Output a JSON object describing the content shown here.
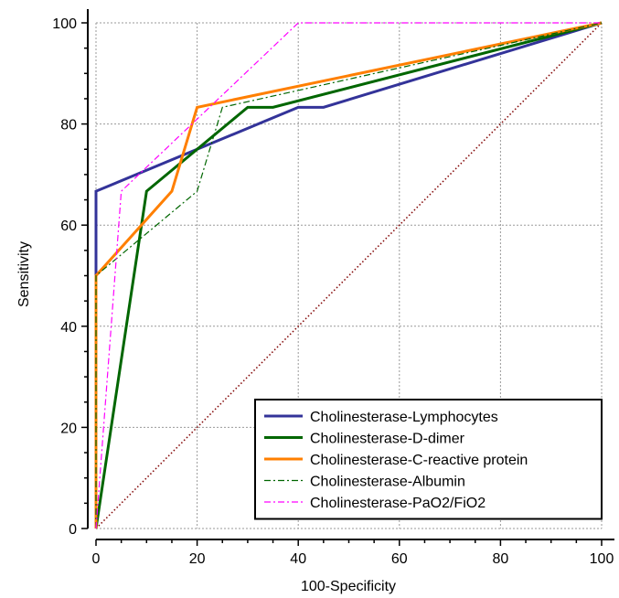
{
  "chart_data": {
    "type": "line",
    "title": "",
    "xlabel": "100-Specificity",
    "ylabel": "Sensitivity",
    "xlim": [
      0,
      100
    ],
    "ylim": [
      0,
      100
    ],
    "x_ticks": [
      0,
      20,
      40,
      60,
      80,
      100
    ],
    "y_ticks": [
      0,
      20,
      40,
      60,
      80,
      100
    ],
    "grid": true,
    "legend_position": "bottom-right",
    "series": [
      {
        "name": "Cholinesterase-Lymphocytes",
        "color": "#333399",
        "style": "solid",
        "points": [
          [
            0,
            0
          ],
          [
            0,
            50
          ],
          [
            0,
            66.7
          ],
          [
            40,
            83.3
          ],
          [
            45,
            83.3
          ],
          [
            100,
            100
          ]
        ]
      },
      {
        "name": "Cholinesterase-D-dimer",
        "color": "#006600",
        "style": "solid",
        "points": [
          [
            0,
            0
          ],
          [
            10,
            66.7
          ],
          [
            20,
            75
          ],
          [
            30,
            83.3
          ],
          [
            35,
            83.3
          ],
          [
            100,
            100
          ]
        ]
      },
      {
        "name": "Cholinesterase-C-reactive protein",
        "color": "#ff7f00",
        "style": "solid",
        "points": [
          [
            0,
            0
          ],
          [
            0,
            50
          ],
          [
            15,
            66.7
          ],
          [
            20,
            83.3
          ],
          [
            100,
            100
          ]
        ]
      },
      {
        "name": "Cholinesterase-Albumin",
        "color": "#006600",
        "style": "dashdot",
        "points": [
          [
            0,
            0
          ],
          [
            0,
            50
          ],
          [
            20,
            66.7
          ],
          [
            25,
            83.3
          ],
          [
            100,
            100
          ]
        ]
      },
      {
        "name": "Cholinesterase-PaO2/FiO2",
        "color": "#ff00ff",
        "style": "dashdot",
        "points": [
          [
            0,
            0
          ],
          [
            5,
            66.7
          ],
          [
            40,
            100
          ],
          [
            100,
            100
          ]
        ]
      }
    ],
    "reference_line": {
      "color": "#800000",
      "style": "dotted",
      "points": [
        [
          0,
          0
        ],
        [
          100,
          100
        ]
      ]
    }
  }
}
